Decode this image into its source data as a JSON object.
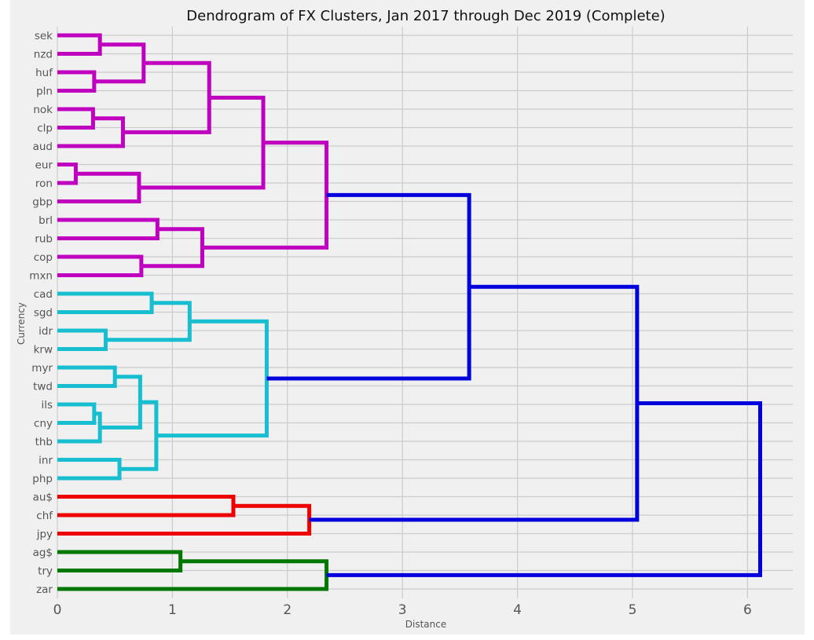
{
  "chart_data": {
    "type": "dendrogram",
    "title": "Dendrogram of FX Clusters, Jan 2017 through Dec 2019 (Complete)",
    "xlabel": "Distance",
    "ylabel": "Currency",
    "xlim": [
      0,
      6.4
    ],
    "xticks": [
      "0",
      "1",
      "2",
      "3",
      "4",
      "5",
      "6"
    ],
    "grid": true,
    "orientation": "left-to-right",
    "leaves": [
      "sek",
      "nzd",
      "huf",
      "pln",
      "nok",
      "clp",
      "aud",
      "eur",
      "ron",
      "gbp",
      "brl",
      "rub",
      "cop",
      "mxn",
      "cad",
      "sgd",
      "idr",
      "krw",
      "myr",
      "twd",
      "ils",
      "cny",
      "thb",
      "inr",
      "php",
      "au$",
      "chf",
      "jpy",
      "ag$",
      "try",
      "zar"
    ],
    "merges": [
      {
        "left": "sek",
        "right": "nzd",
        "height": 0.37,
        "color": "#bf00bf"
      },
      {
        "left": "huf",
        "right": "pln",
        "height": 0.32,
        "color": "#bf00bf"
      },
      {
        "left": "sek+nzd",
        "right": "huf+pln",
        "height": 0.75,
        "color": "#bf00bf"
      },
      {
        "left": "nok",
        "right": "clp",
        "height": 0.31,
        "color": "#bf00bf"
      },
      {
        "left": "nok+clp",
        "right": "aud",
        "height": 0.57,
        "color": "#bf00bf"
      },
      {
        "left": "sek..pln",
        "right": "nok..aud",
        "height": 1.32,
        "color": "#bf00bf"
      },
      {
        "left": "eur",
        "right": "ron",
        "height": 0.16,
        "color": "#bf00bf"
      },
      {
        "left": "eur+ron",
        "right": "gbp",
        "height": 0.71,
        "color": "#bf00bf"
      },
      {
        "left": "sek..aud",
        "right": "eur..gbp",
        "height": 1.79,
        "color": "#bf00bf"
      },
      {
        "left": "brl",
        "right": "rub",
        "height": 0.87,
        "color": "#bf00bf"
      },
      {
        "left": "cop",
        "right": "mxn",
        "height": 0.73,
        "color": "#bf00bf"
      },
      {
        "left": "brl+rub",
        "right": "cop+mxn",
        "height": 1.26,
        "color": "#bf00bf"
      },
      {
        "left": "sek..gbp",
        "right": "brl..mxn",
        "height": 2.34,
        "color": "#bf00bf"
      },
      {
        "left": "cad",
        "right": "sgd",
        "height": 0.82,
        "color": "#17becf"
      },
      {
        "left": "idr",
        "right": "krw",
        "height": 0.42,
        "color": "#17becf"
      },
      {
        "left": "cad+sgd",
        "right": "idr+krw",
        "height": 1.15,
        "color": "#17becf"
      },
      {
        "left": "myr",
        "right": "twd",
        "height": 0.5,
        "color": "#17becf"
      },
      {
        "left": "ils",
        "right": "cny",
        "height": 0.32,
        "color": "#17becf"
      },
      {
        "left": "ils+cny",
        "right": "thb",
        "height": 0.37,
        "color": "#17becf"
      },
      {
        "left": "myr+twd",
        "right": "ils..thb",
        "height": 0.72,
        "color": "#17becf"
      },
      {
        "left": "inr",
        "right": "php",
        "height": 0.54,
        "color": "#17becf"
      },
      {
        "left": "myr..thb",
        "right": "inr+php",
        "height": 0.86,
        "color": "#17becf"
      },
      {
        "left": "cad..krw",
        "right": "myr..php",
        "height": 1.82,
        "color": "#17becf"
      },
      {
        "left": "sek..mxn",
        "right": "cad..php",
        "height": 3.58,
        "color": "#0000dd"
      },
      {
        "left": "au$",
        "right": "chf",
        "height": 1.53,
        "color": "#ee0000"
      },
      {
        "left": "au$+chf",
        "right": "jpy",
        "height": 2.19,
        "color": "#ee0000"
      },
      {
        "left": "sek..php",
        "right": "au$..jpy",
        "height": 5.04,
        "color": "#0000dd"
      },
      {
        "left": "ag$",
        "right": "try",
        "height": 1.07,
        "color": "#007700"
      },
      {
        "left": "ag$+try",
        "right": "zar",
        "height": 2.34,
        "color": "#007700"
      },
      {
        "left": "sek..jpy",
        "right": "ag$..zar",
        "height": 6.11,
        "color": "#0000dd"
      }
    ]
  }
}
